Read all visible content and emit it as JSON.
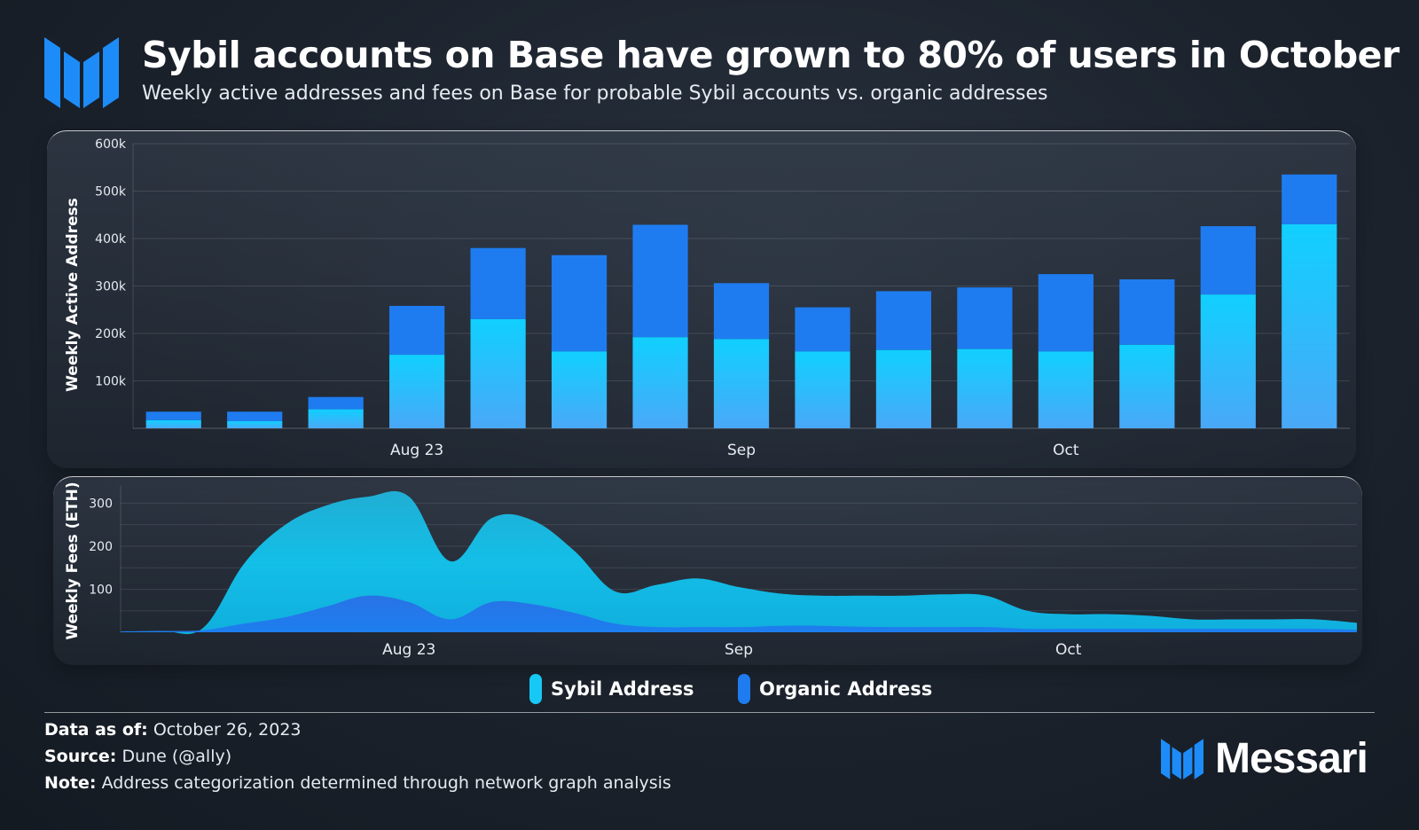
{
  "header": {
    "title": "Sybil accounts on Base have grown to 80% of users in October",
    "subtitle": "Weekly active addresses and fees on Base for probable Sybil accounts vs. organic addresses"
  },
  "colors": {
    "sybil": "#17c8f5",
    "organic": "#1e7cf0",
    "brand": "#1d8cf8"
  },
  "chart_data": [
    {
      "type": "bar",
      "stacked": true,
      "ylabel": "Weekly Active Address",
      "ylim": [
        0,
        600000
      ],
      "yticks": [
        100000,
        200000,
        300000,
        400000,
        500000,
        600000
      ],
      "yticklabels": [
        "100k",
        "200k",
        "300k",
        "400k",
        "500k",
        "600k"
      ],
      "xticks": [
        {
          "index": 3,
          "label": "Aug 23"
        },
        {
          "index": 7,
          "label": "Sep"
        },
        {
          "index": 11,
          "label": "Oct"
        }
      ],
      "series": [
        {
          "name": "Sybil Address",
          "values": [
            17000,
            15000,
            40000,
            155000,
            230000,
            162000,
            192000,
            188000,
            162000,
            165000,
            167000,
            162000,
            176000,
            282000,
            430000
          ]
        },
        {
          "name": "Organic Address",
          "values": [
            18000,
            20000,
            26000,
            103000,
            150000,
            203000,
            237000,
            118000,
            93000,
            124000,
            130000,
            163000,
            138000,
            144000,
            105000
          ]
        }
      ],
      "grid": true
    },
    {
      "type": "area",
      "stacked": false,
      "ylabel": "Weekly Fees (ETH)",
      "ylim": [
        0,
        340
      ],
      "yticks": [
        100,
        200,
        300
      ],
      "x": [
        0,
        1,
        2,
        3,
        4,
        5,
        6,
        7,
        8,
        9,
        10,
        11,
        12,
        13,
        14,
        15,
        16,
        17,
        18,
        19,
        20,
        21,
        22,
        23,
        24,
        25,
        26,
        27,
        28,
        29,
        30
      ],
      "xticks": [
        {
          "at": 7,
          "label": "Aug 23"
        },
        {
          "at": 15,
          "label": "Sep"
        },
        {
          "at": 23,
          "label": "Oct"
        }
      ],
      "series": [
        {
          "name": "Sybil Address",
          "values": [
            2,
            3,
            10,
            160,
            250,
            295,
            315,
            315,
            165,
            265,
            260,
            190,
            95,
            110,
            125,
            105,
            90,
            85,
            85,
            85,
            88,
            85,
            50,
            42,
            42,
            38,
            30,
            30,
            30,
            30,
            22
          ]
        },
        {
          "name": "Organic Address",
          "values": [
            2,
            3,
            5,
            20,
            35,
            60,
            85,
            70,
            30,
            70,
            65,
            45,
            20,
            12,
            12,
            12,
            15,
            15,
            13,
            12,
            12,
            12,
            8,
            8,
            8,
            8,
            8,
            8,
            8,
            8,
            6
          ]
        }
      ],
      "grid": true
    }
  ],
  "legend": {
    "sybil_label": "Sybil Address",
    "organic_label": "Organic Address"
  },
  "footer": {
    "data_as_of_label": "Data as of:",
    "data_as_of_value": "October 26, 2023",
    "source_label": "Source:",
    "source_value": "Dune (@ally)",
    "note_label": "Note:",
    "note_value": "Address categorization determined through network graph analysis"
  },
  "brand": {
    "name": "Messari",
    "logo_icon": "messari-logo-icon"
  }
}
